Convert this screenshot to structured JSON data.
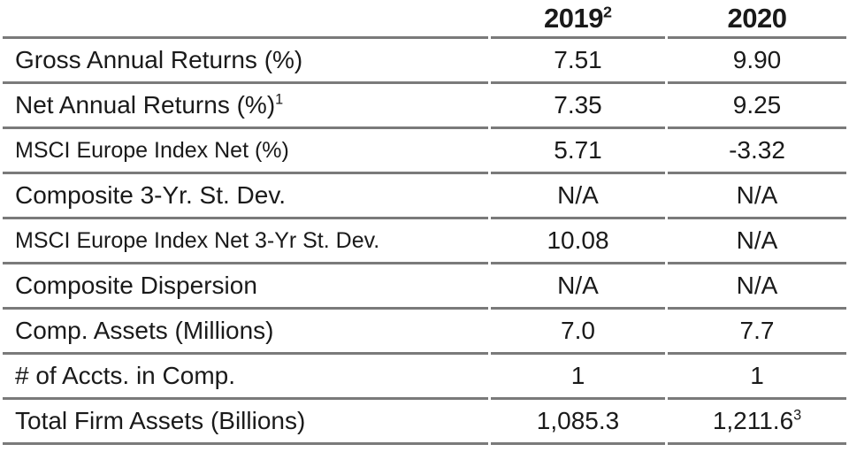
{
  "colors": {
    "text": "#1a1a1a",
    "rule_line": "#7a7a7a",
    "background": "#ffffff"
  },
  "table": {
    "columns": [
      {
        "label": "",
        "sup": ""
      },
      {
        "label": "2019",
        "sup": "2"
      },
      {
        "label": "2020",
        "sup": ""
      }
    ],
    "rows": [
      {
        "label": "Gross Annual Returns (%)",
        "label_sup": "",
        "small": false,
        "values": [
          {
            "text": "7.51",
            "sup": ""
          },
          {
            "text": "9.90",
            "sup": ""
          }
        ]
      },
      {
        "label": "Net Annual Returns (%)",
        "label_sup": "1",
        "small": false,
        "values": [
          {
            "text": "7.35",
            "sup": ""
          },
          {
            "text": "9.25",
            "sup": ""
          }
        ]
      },
      {
        "label": "MSCI Europe Index Net (%)",
        "label_sup": "",
        "small": true,
        "values": [
          {
            "text": "5.71",
            "sup": ""
          },
          {
            "text": "-3.32",
            "sup": ""
          }
        ]
      },
      {
        "label": "Composite 3-Yr. St. Dev.",
        "label_sup": "",
        "small": false,
        "values": [
          {
            "text": "N/A",
            "sup": ""
          },
          {
            "text": "N/A",
            "sup": ""
          }
        ]
      },
      {
        "label": "MSCI Europe Index Net 3-Yr St. Dev.",
        "label_sup": "",
        "small": true,
        "values": [
          {
            "text": "10.08",
            "sup": ""
          },
          {
            "text": "N/A",
            "sup": ""
          }
        ]
      },
      {
        "label": "Composite Dispersion",
        "label_sup": "",
        "small": false,
        "values": [
          {
            "text": "N/A",
            "sup": ""
          },
          {
            "text": "N/A",
            "sup": ""
          }
        ]
      },
      {
        "label": "Comp. Assets (Millions)",
        "label_sup": "",
        "small": false,
        "values": [
          {
            "text": "7.0",
            "sup": ""
          },
          {
            "text": "7.7",
            "sup": ""
          }
        ]
      },
      {
        "label": "# of Accts. in Comp.",
        "label_sup": "",
        "small": false,
        "values": [
          {
            "text": "1",
            "sup": ""
          },
          {
            "text": "1",
            "sup": ""
          }
        ]
      },
      {
        "label": "Total Firm Assets (Billions)",
        "label_sup": "",
        "small": false,
        "values": [
          {
            "text": "1,085.3",
            "sup": ""
          },
          {
            "text": "1,211.6",
            "sup": "3"
          }
        ]
      }
    ]
  }
}
